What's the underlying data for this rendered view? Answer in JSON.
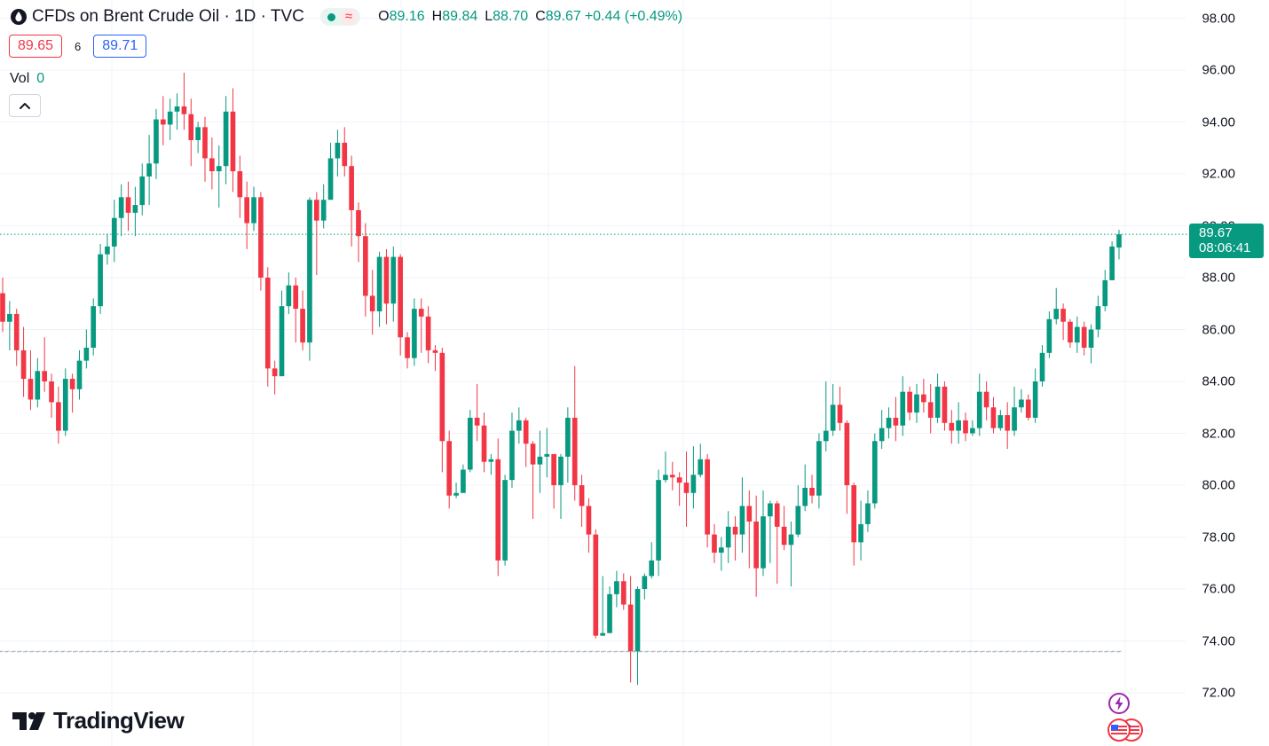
{
  "header": {
    "title": "CFDs on Brent Crude Oil · 1D · TVC",
    "status_symbol": "≈",
    "ohlc": [
      {
        "key": "O",
        "value": "89.16"
      },
      {
        "key": "H",
        "value": "89.84"
      },
      {
        "key": "L",
        "value": "88.70"
      },
      {
        "key": "C",
        "value": "89.67"
      }
    ],
    "change": "+0.44 (+0.49%)"
  },
  "trade": {
    "sell": "89.65",
    "spread": "6",
    "buy": "89.71"
  },
  "volume": {
    "label": "Vol",
    "value": "0"
  },
  "last_price": {
    "price": "89.67",
    "countdown": "08:06:41"
  },
  "brand": {
    "name": "TradingView"
  },
  "colors": {
    "up": "#089981",
    "down": "#f23645",
    "grid": "#f0f3fa",
    "accent": "#2962ff"
  },
  "chart_data": {
    "type": "candlestick",
    "title": "CFDs on Brent Crude Oil · 1D · TVC",
    "interval": "1D",
    "price_scale": "right",
    "ylim": [
      70.2,
      98.7
    ],
    "ticks": [
      "98.00",
      "96.00",
      "94.00",
      "92.00",
      "90.00",
      "88.00",
      "86.00",
      "84.00",
      "82.00",
      "80.00",
      "78.00",
      "76.00",
      "74.00",
      "72.00"
    ],
    "tick_values": [
      98,
      96,
      94,
      92,
      90,
      88,
      86,
      84,
      82,
      80,
      78,
      76,
      74,
      72
    ],
    "last_price": 89.67,
    "reference_price": 73.6,
    "candles": [
      [
        87.4,
        86.3,
        88.0,
        85.9
      ],
      [
        86.3,
        86.6,
        87.1,
        85.2
      ],
      [
        86.6,
        85.2,
        86.8,
        84.6
      ],
      [
        85.2,
        84.1,
        86.1,
        83.4
      ],
      [
        84.1,
        83.3,
        85.2,
        82.9
      ],
      [
        83.3,
        84.4,
        84.9,
        83.0
      ],
      [
        84.4,
        84.0,
        85.7,
        83.6
      ],
      [
        84.0,
        83.2,
        84.3,
        82.6
      ],
      [
        83.2,
        82.1,
        83.8,
        81.6
      ],
      [
        82.1,
        84.1,
        84.5,
        81.9
      ],
      [
        84.1,
        83.7,
        84.3,
        82.8
      ],
      [
        83.7,
        84.8,
        85.2,
        83.3
      ],
      [
        84.8,
        85.3,
        86.0,
        84.5
      ],
      [
        85.3,
        86.9,
        87.2,
        85.0
      ],
      [
        86.9,
        88.9,
        89.3,
        86.6
      ],
      [
        88.9,
        89.2,
        89.7,
        88.5
      ],
      [
        89.2,
        90.3,
        91.0,
        88.6
      ],
      [
        90.3,
        91.1,
        91.6,
        89.6
      ],
      [
        91.1,
        90.5,
        91.7,
        89.8
      ],
      [
        90.5,
        90.8,
        91.5,
        89.6
      ],
      [
        90.8,
        91.9,
        92.4,
        90.4
      ],
      [
        91.9,
        92.4,
        93.5,
        90.8
      ],
      [
        92.4,
        94.1,
        94.5,
        91.8
      ],
      [
        94.1,
        93.9,
        95.0,
        93.1
      ],
      [
        93.9,
        94.4,
        94.9,
        93.3
      ],
      [
        94.4,
        94.6,
        95.1,
        93.7
      ],
      [
        94.6,
        94.3,
        95.9,
        93.7
      ],
      [
        94.3,
        93.3,
        94.9,
        92.3
      ],
      [
        93.3,
        93.8,
        94.0,
        92.8
      ],
      [
        93.8,
        92.6,
        94.2,
        91.7
      ],
      [
        92.6,
        92.1,
        93.4,
        91.4
      ],
      [
        92.1,
        92.3,
        93.1,
        90.7
      ],
      [
        92.3,
        94.4,
        95.0,
        91.6
      ],
      [
        94.4,
        92.1,
        95.3,
        91.3
      ],
      [
        92.1,
        91.1,
        92.7,
        90.3
      ],
      [
        91.1,
        90.1,
        91.7,
        89.1
      ],
      [
        90.1,
        91.1,
        91.5,
        89.8
      ],
      [
        91.1,
        88.0,
        91.3,
        87.5
      ],
      [
        88.0,
        84.5,
        88.4,
        83.8
      ],
      [
        84.5,
        84.2,
        84.8,
        83.5
      ],
      [
        84.2,
        86.9,
        87.5,
        86.2
      ],
      [
        86.9,
        87.7,
        88.2,
        86.6
      ],
      [
        87.7,
        86.8,
        88.0,
        85.5
      ],
      [
        86.8,
        85.5,
        87.5,
        85.2
      ],
      [
        85.5,
        91.0,
        91.1,
        84.8
      ],
      [
        91.0,
        90.2,
        91.3,
        88.1
      ],
      [
        90.2,
        91.0,
        91.6,
        89.9
      ],
      [
        91.0,
        92.6,
        93.2,
        91.0
      ],
      [
        92.6,
        93.2,
        93.7,
        91.9
      ],
      [
        93.2,
        92.3,
        93.8,
        91.9
      ],
      [
        92.3,
        90.6,
        92.7,
        89.2
      ],
      [
        90.6,
        89.6,
        90.9,
        88.6
      ],
      [
        89.6,
        87.3,
        90.1,
        86.5
      ],
      [
        87.3,
        86.7,
        88.3,
        85.8
      ],
      [
        86.7,
        88.8,
        89.0,
        86.1
      ],
      [
        88.8,
        87.0,
        89.1,
        86.2
      ],
      [
        87.0,
        88.8,
        89.2,
        86.3
      ],
      [
        88.8,
        85.7,
        88.9,
        85.0
      ],
      [
        85.7,
        84.9,
        85.9,
        84.5
      ],
      [
        84.9,
        86.8,
        87.2,
        84.6
      ],
      [
        86.8,
        86.5,
        87.2,
        85.1
      ],
      [
        86.5,
        85.2,
        86.9,
        84.7
      ],
      [
        85.2,
        85.1,
        85.4,
        84.4
      ],
      [
        85.1,
        81.7,
        85.3,
        80.5
      ],
      [
        81.7,
        79.6,
        82.1,
        79.1
      ],
      [
        79.6,
        79.7,
        80.1,
        79.5
      ],
      [
        79.7,
        80.6,
        80.8,
        79.9
      ],
      [
        80.6,
        82.6,
        82.9,
        80.5
      ],
      [
        82.6,
        82.3,
        83.9,
        81.7
      ],
      [
        82.3,
        80.9,
        82.8,
        80.5
      ],
      [
        80.9,
        81.0,
        81.2,
        80.4
      ],
      [
        81.0,
        77.1,
        81.8,
        76.5
      ],
      [
        77.1,
        80.2,
        80.4,
        76.9
      ],
      [
        80.2,
        82.1,
        82.8,
        79.9
      ],
      [
        82.1,
        82.5,
        83.0,
        81.6
      ],
      [
        82.5,
        81.6,
        82.6,
        80.7
      ],
      [
        81.6,
        80.8,
        81.7,
        78.7
      ],
      [
        80.8,
        81.1,
        82.1,
        79.7
      ],
      [
        81.1,
        81.2,
        82.2,
        80.3
      ],
      [
        81.2,
        80.0,
        80.9,
        79.1
      ],
      [
        80.0,
        81.1,
        81.2,
        78.7
      ],
      [
        81.1,
        82.6,
        83.0,
        80.1
      ],
      [
        82.6,
        80.0,
        84.6,
        79.4
      ],
      [
        80.0,
        79.2,
        80.4,
        78.4
      ],
      [
        79.2,
        78.1,
        79.5,
        77.4
      ],
      [
        78.1,
        74.2,
        78.3,
        74.1
      ],
      [
        74.2,
        74.3,
        76.5,
        74.2
      ],
      [
        74.3,
        75.8,
        76.1,
        75.1
      ],
      [
        75.8,
        76.3,
        76.7,
        75.3
      ],
      [
        76.3,
        75.4,
        76.6,
        75.2
      ],
      [
        75.4,
        73.6,
        76.5,
        72.4
      ],
      [
        73.6,
        76.0,
        76.1,
        72.3
      ],
      [
        76.0,
        76.5,
        76.6,
        75.6
      ],
      [
        76.5,
        77.1,
        77.8,
        76.4
      ],
      [
        77.1,
        80.2,
        80.6,
        76.5
      ],
      [
        80.2,
        80.4,
        81.3,
        80.1
      ],
      [
        80.4,
        80.3,
        80.9,
        79.8
      ],
      [
        80.3,
        80.1,
        80.5,
        79.2
      ],
      [
        80.1,
        79.7,
        81.3,
        78.4
      ],
      [
        79.7,
        80.4,
        81.5,
        79.1
      ],
      [
        80.4,
        81.0,
        81.6,
        80.3
      ],
      [
        81.0,
        78.1,
        81.2,
        77.6
      ],
      [
        78.1,
        77.4,
        78.5,
        77.0
      ],
      [
        77.4,
        77.6,
        78.0,
        76.7
      ],
      [
        77.6,
        78.4,
        79.0,
        77.0
      ],
      [
        78.4,
        78.1,
        78.8,
        77.1
      ],
      [
        78.1,
        79.2,
        80.3,
        77.4
      ],
      [
        79.2,
        78.6,
        79.8,
        76.8
      ],
      [
        78.6,
        76.8,
        79.6,
        75.7
      ],
      [
        76.8,
        78.8,
        79.8,
        76.5
      ],
      [
        78.8,
        79.3,
        79.4,
        77.0
      ],
      [
        79.3,
        78.4,
        79.4,
        76.2
      ],
      [
        78.4,
        77.7,
        79.2,
        77.5
      ],
      [
        77.7,
        78.1,
        78.6,
        76.1
      ],
      [
        78.1,
        79.2,
        80.0,
        78.0
      ],
      [
        79.2,
        79.9,
        80.8,
        79.0
      ],
      [
        79.9,
        79.6,
        80.4,
        79.3
      ],
      [
        79.6,
        81.7,
        82.0,
        79.1
      ],
      [
        81.7,
        82.1,
        84.0,
        81.3
      ],
      [
        82.1,
        83.1,
        83.9,
        81.9
      ],
      [
        83.1,
        82.4,
        83.8,
        82.1
      ],
      [
        82.4,
        80.0,
        82.5,
        78.9
      ],
      [
        80.0,
        77.8,
        80.1,
        76.9
      ],
      [
        77.8,
        78.5,
        79.4,
        77.1
      ],
      [
        78.5,
        79.3,
        79.8,
        78.2
      ],
      [
        79.3,
        81.7,
        82.0,
        79.1
      ],
      [
        81.7,
        82.2,
        82.9,
        81.4
      ],
      [
        82.2,
        82.6,
        83.0,
        81.8
      ],
      [
        82.6,
        82.3,
        83.4,
        81.7
      ],
      [
        82.3,
        83.6,
        84.2,
        81.9
      ],
      [
        83.6,
        82.8,
        83.8,
        82.5
      ],
      [
        82.8,
        83.5,
        83.9,
        82.4
      ],
      [
        83.5,
        83.2,
        84.1,
        82.8
      ],
      [
        83.2,
        82.6,
        83.9,
        82.0
      ],
      [
        82.6,
        83.8,
        84.3,
        82.4
      ],
      [
        83.8,
        82.4,
        84.0,
        82.1
      ],
      [
        82.4,
        82.1,
        82.9,
        81.6
      ],
      [
        82.1,
        82.5,
        83.2,
        81.6
      ],
      [
        82.5,
        82.0,
        82.8,
        81.7
      ],
      [
        82.0,
        82.2,
        82.5,
        81.9
      ],
      [
        82.2,
        83.6,
        84.3,
        81.9
      ],
      [
        83.6,
        83.0,
        84.0,
        82.5
      ],
      [
        83.0,
        82.2,
        83.4,
        82.0
      ],
      [
        82.2,
        82.7,
        82.9,
        82.1
      ],
      [
        82.7,
        82.1,
        83.2,
        81.4
      ],
      [
        82.1,
        83.0,
        83.8,
        81.9
      ],
      [
        83.0,
        83.3,
        83.7,
        82.8
      ],
      [
        83.3,
        82.6,
        83.5,
        82.5
      ],
      [
        82.6,
        84.0,
        84.5,
        82.4
      ],
      [
        84.0,
        85.1,
        85.4,
        83.8
      ],
      [
        85.1,
        86.4,
        86.7,
        84.9
      ],
      [
        86.4,
        86.8,
        87.6,
        86.2
      ],
      [
        86.8,
        86.3,
        87.0,
        85.6
      ],
      [
        86.3,
        85.5,
        86.4,
        85.3
      ],
      [
        85.5,
        86.1,
        86.5,
        85.1
      ],
      [
        86.1,
        85.3,
        86.3,
        85.0
      ],
      [
        85.3,
        86.0,
        86.2,
        84.7
      ],
      [
        86.0,
        86.9,
        87.3,
        85.7
      ],
      [
        86.9,
        87.9,
        88.3,
        86.7
      ],
      [
        87.9,
        89.2,
        89.4,
        87.9
      ],
      [
        89.16,
        89.67,
        89.84,
        88.7
      ]
    ]
  }
}
